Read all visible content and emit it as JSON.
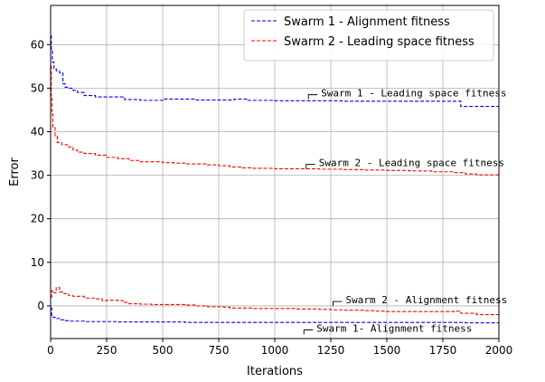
{
  "chart_data": {
    "type": "line",
    "xlabel": "Iterations",
    "ylabel": "Error",
    "xlim": [
      0,
      2000
    ],
    "ylim": [
      -7.5,
      69
    ],
    "x_ticks": [
      0,
      250,
      500,
      750,
      1000,
      1250,
      1500,
      1750,
      2000
    ],
    "y_ticks": [
      0,
      10,
      20,
      30,
      40,
      50,
      60
    ],
    "grid": true,
    "legend_position": "top-right",
    "series": [
      {
        "name": "Swarm 1 - Alignment fitness",
        "color": "#0000ff",
        "style": "dashed",
        "in_legend": true,
        "x": [
          0,
          5,
          10,
          20,
          40,
          60,
          80,
          100,
          150,
          200,
          250,
          300,
          400,
          500,
          600,
          700,
          800,
          900,
          1000,
          1100,
          1200,
          1300,
          1400,
          1500,
          1600,
          1700,
          1800,
          1850,
          1900,
          2000
        ],
        "y": [
          -0.5,
          -2.2,
          -2.6,
          -2.9,
          -3.2,
          -3.4,
          -3.5,
          -3.5,
          -3.6,
          -3.6,
          -3.6,
          -3.7,
          -3.7,
          -3.7,
          -3.8,
          -3.8,
          -3.8,
          -3.8,
          -3.8,
          -3.8,
          -3.8,
          -3.8,
          -3.8,
          -3.8,
          -3.8,
          -3.8,
          -3.8,
          -3.9,
          -3.9,
          -3.9
        ]
      },
      {
        "name": "Swarm 2 - Leading space fitness",
        "color": "#ff0000",
        "style": "dashed",
        "in_legend": true,
        "x": [
          0,
          3,
          6,
          10,
          20,
          30,
          50,
          80,
          100,
          120,
          150,
          200,
          250,
          300,
          350,
          400,
          500,
          550,
          600,
          700,
          750,
          800,
          850,
          900,
          1000,
          1100,
          1200,
          1300,
          1400,
          1500,
          1600,
          1700,
          1800,
          1850,
          1900,
          2000
        ],
        "y": [
          55,
          48,
          44,
          41,
          39,
          37.5,
          37,
          36.5,
          35.8,
          35.3,
          35,
          34.6,
          34.1,
          33.8,
          33.4,
          33.1,
          32.9,
          32.8,
          32.6,
          32.4,
          32.2,
          31.9,
          31.7,
          31.6,
          31.5,
          31.5,
          31.4,
          31.3,
          31.2,
          31.1,
          31.0,
          30.8,
          30.6,
          30.3,
          30.1,
          30.0
        ]
      },
      {
        "name": "Swarm 1 - Leading space fitness",
        "color": "#0000ff",
        "style": "dashed",
        "in_legend": false,
        "x": [
          0,
          3,
          8,
          15,
          25,
          40,
          55,
          65,
          80,
          100,
          120,
          150,
          200,
          250,
          300,
          330,
          400,
          450,
          500,
          600,
          650,
          700,
          800,
          820,
          880,
          1000,
          1100,
          1200,
          1300,
          1400,
          1500,
          1600,
          1700,
          1800,
          1830,
          1900,
          2000
        ],
        "y": [
          62,
          59,
          56,
          54.5,
          54,
          53.5,
          51,
          50.2,
          50,
          49.5,
          49,
          48.3,
          48,
          48,
          48,
          47.4,
          47.2,
          47.2,
          47.5,
          47.5,
          47.3,
          47.3,
          47.3,
          47.5,
          47.2,
          47.1,
          47.1,
          47.1,
          47,
          47,
          47,
          47,
          47,
          47,
          45.8,
          45.8,
          45.8
        ]
      },
      {
        "name": "Swarm 2 - Alignment fitness",
        "color": "#ff0000",
        "style": "dashed",
        "in_legend": false,
        "x": [
          0,
          5,
          15,
          25,
          40,
          60,
          80,
          100,
          150,
          200,
          230,
          250,
          300,
          330,
          350,
          400,
          450,
          500,
          550,
          600,
          650,
          700,
          770,
          800,
          900,
          1000,
          1100,
          1200,
          1250,
          1300,
          1400,
          1450,
          1500,
          1600,
          1700,
          1800,
          1830,
          1900,
          2000
        ],
        "y": [
          2,
          3.5,
          3,
          4.2,
          3.2,
          2.8,
          2.4,
          2.2,
          1.8,
          1.6,
          1.2,
          1.3,
          1.2,
          0.8,
          0.5,
          0.4,
          0.3,
          0.3,
          0.3,
          0.2,
          0,
          -0.2,
          -0.3,
          -0.5,
          -0.6,
          -0.6,
          -0.7,
          -0.8,
          -0.9,
          -1.0,
          -1.1,
          -1.2,
          -1.3,
          -1.3,
          -1.3,
          -1.2,
          -1.7,
          -2.0,
          -2.1
        ]
      }
    ],
    "annotations": [
      {
        "text": "Swarm 1 - Leading space fitness",
        "x": 1150,
        "y": 48.5
      },
      {
        "text": "Swarm 2 - Leading space fitness",
        "x": 1140,
        "y": 32.5
      },
      {
        "text": "Swarm 2 - Alignment fitness",
        "x": 1260,
        "y": 1.0
      },
      {
        "text": "Swarm 1- Alignment fitness",
        "x": 1130,
        "y": -5.5
      }
    ]
  }
}
